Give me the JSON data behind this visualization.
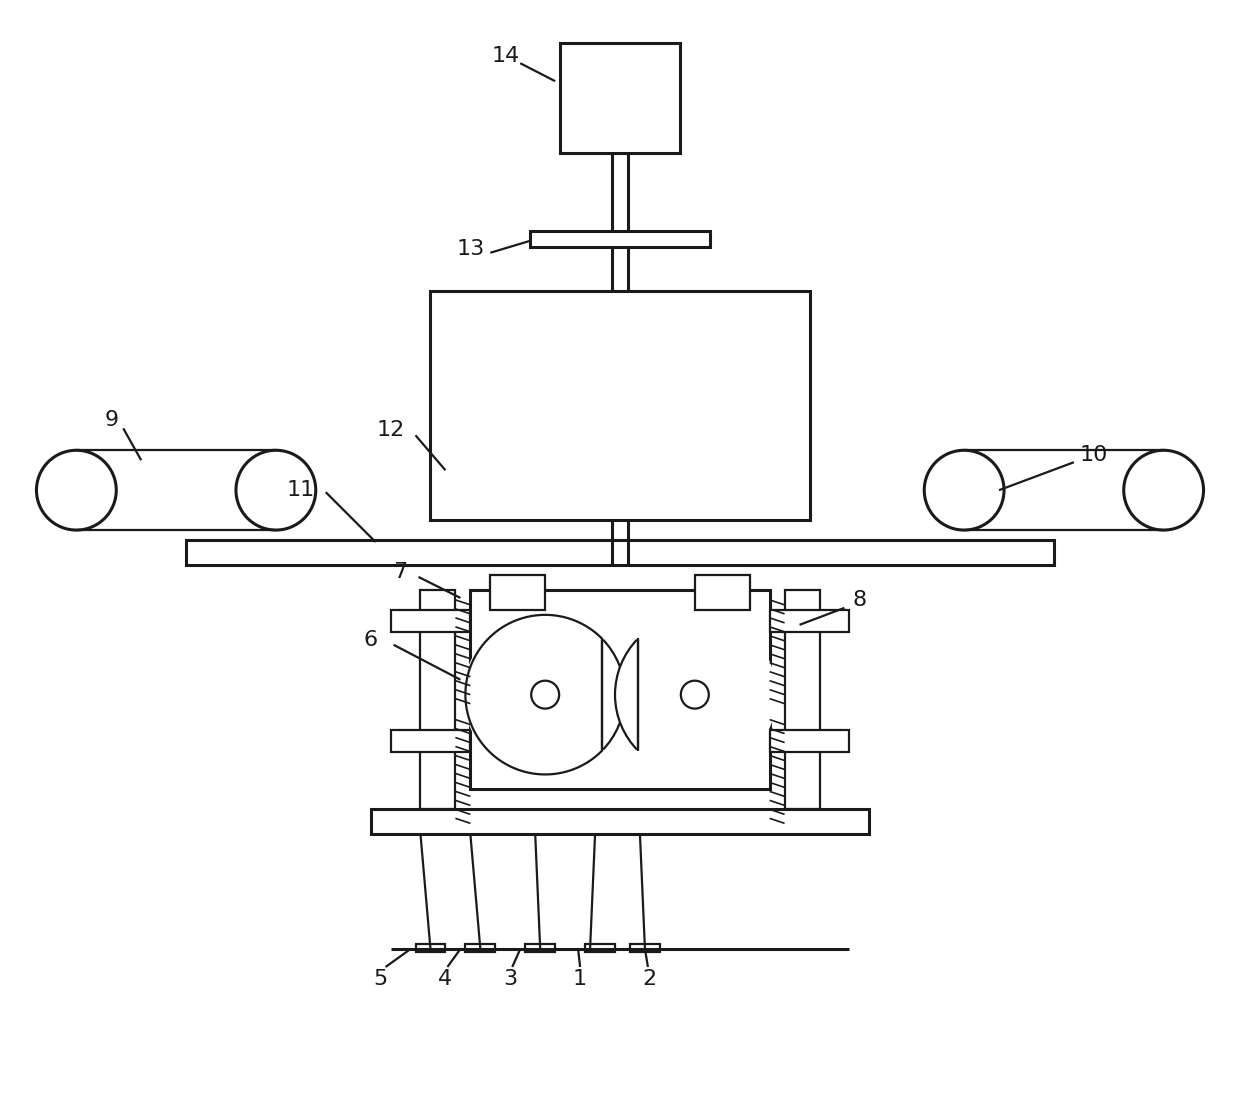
{
  "bg_color": "#ffffff",
  "line_color": "#1a1a1a",
  "lw": 1.6,
  "tlw": 2.2,
  "fig_width": 12.4,
  "fig_height": 11.12,
  "label_fontsize": 16
}
